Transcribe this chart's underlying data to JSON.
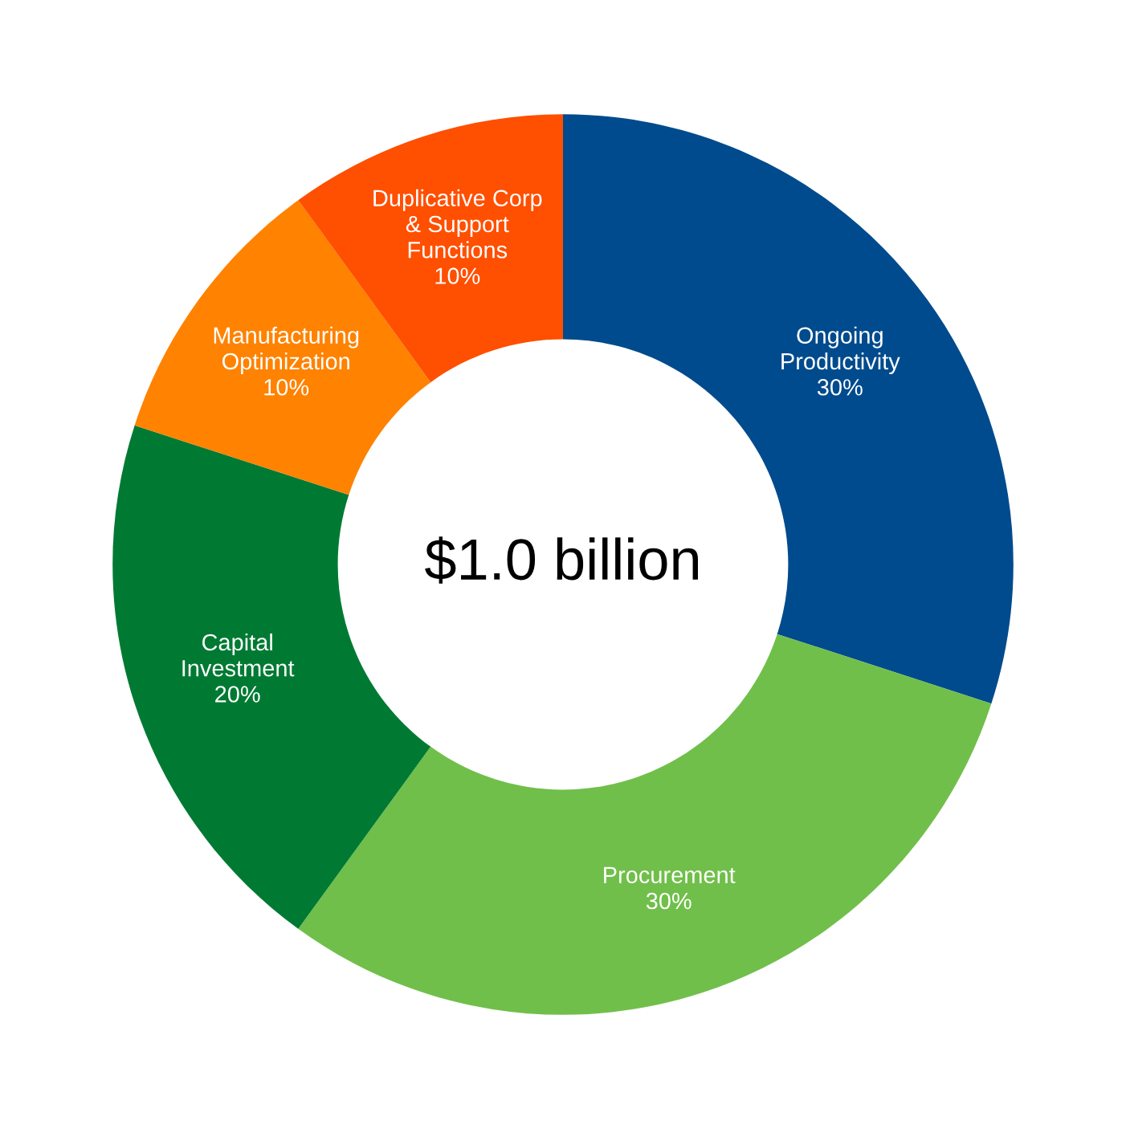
{
  "chart_data": {
    "type": "donut",
    "categories": [
      "Ongoing\nProductivity",
      "Procurement",
      "Capital\nInvestment",
      "Manufacturing\nOptimization",
      "Duplicative Corp\n& Support\nFunctions"
    ],
    "values": [
      30,
      30,
      20,
      10,
      10
    ],
    "colors": [
      "#004b8d",
      "#70bf4a",
      "#007a33",
      "#ff8200",
      "#ff4f00"
    ],
    "value_labels": [
      "30%",
      "30%",
      "20%",
      "10%",
      "10%"
    ],
    "annotations": [
      "$1.0 billion"
    ]
  }
}
